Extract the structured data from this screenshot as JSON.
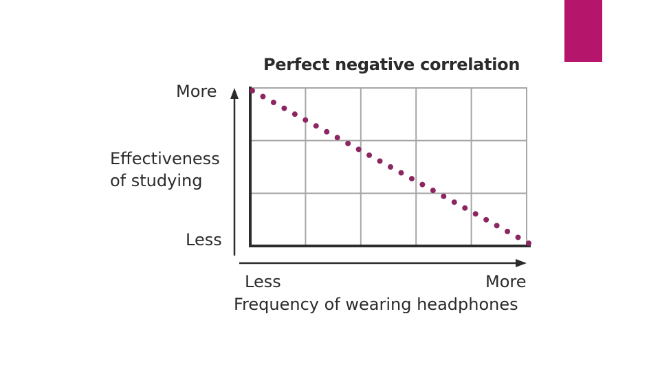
{
  "slide": {
    "accent_color": "#b5156a"
  },
  "chart_data": {
    "type": "scatter",
    "title": "Perfect negative correlation",
    "xlabel": "Frequency of wearing headphones",
    "ylabel_line1": "Effectiveness",
    "ylabel_line2": "of studying",
    "x_low_label": "Less",
    "x_high_label": "More",
    "y_low_label": "Less",
    "y_high_label": "More",
    "grid": true,
    "grid_columns": 5,
    "grid_rows": 3,
    "xlim": [
      0,
      1
    ],
    "ylim": [
      0,
      1
    ],
    "point_color": "#8b2660",
    "grid_color": "#a6a6a6",
    "axis_color": "#2b2b2b",
    "num_points": 27
  }
}
